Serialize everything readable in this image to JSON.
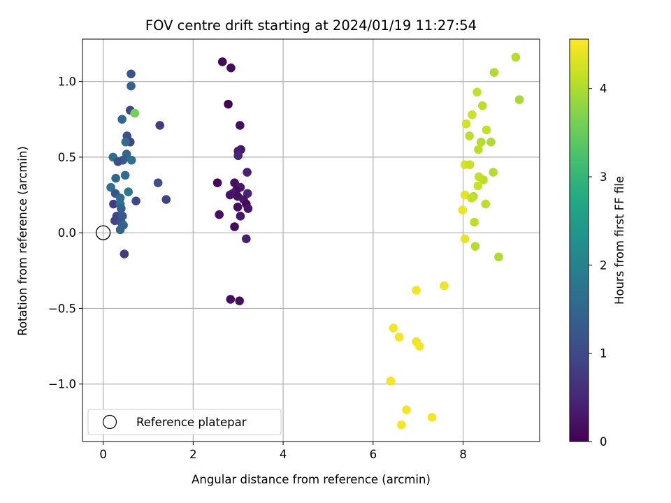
{
  "chart_data": {
    "type": "scatter",
    "title": "FOV centre drift starting at 2024/01/19 11:27:54",
    "xlabel": "Angular distance from reference (arcmin)",
    "ylabel": "Rotation from reference (arcmin)",
    "xlim": [
      -0.46,
      9.7
    ],
    "ylim": [
      -1.38,
      1.28
    ],
    "xticks": [
      0,
      2,
      4,
      6,
      8
    ],
    "xtick_labels": [
      "0",
      "2",
      "4",
      "6",
      "8"
    ],
    "yticks": [
      -1.0,
      -0.5,
      0.0,
      0.5,
      1.0
    ],
    "ytick_labels": [
      "−1.0",
      "−0.5",
      "0.0",
      "0.5",
      "1.0"
    ],
    "grid": true,
    "colorbar": {
      "label": "Hours from first FF file",
      "colormap": "viridis",
      "range": [
        0,
        4.56
      ],
      "ticks": [
        0,
        1,
        2,
        3,
        4
      ],
      "tick_labels": [
        "0",
        "1",
        "2",
        "3",
        "4"
      ]
    },
    "legend": {
      "location": "lower-left",
      "entries": [
        {
          "label": "Reference platepar",
          "marker": "open-circle"
        }
      ]
    },
    "reference_point": {
      "x": 0.0,
      "y": 0.0
    },
    "points": [
      {
        "x": 0.62,
        "y": 1.05,
        "h": 1.2
      },
      {
        "x": 0.62,
        "y": 0.97,
        "h": 1.4
      },
      {
        "x": 0.6,
        "y": 0.81,
        "h": 1.0
      },
      {
        "x": 0.42,
        "y": 0.75,
        "h": 1.5
      },
      {
        "x": 0.7,
        "y": 0.79,
        "h": 3.6
      },
      {
        "x": 1.26,
        "y": 0.71,
        "h": 0.8
      },
      {
        "x": 0.53,
        "y": 0.64,
        "h": 1.1
      },
      {
        "x": 0.6,
        "y": 0.6,
        "h": 0.9
      },
      {
        "x": 0.5,
        "y": 0.6,
        "h": 1.6
      },
      {
        "x": 0.52,
        "y": 0.52,
        "h": 1.5
      },
      {
        "x": 0.22,
        "y": 0.5,
        "h": 1.6
      },
      {
        "x": 0.63,
        "y": 0.48,
        "h": 1.7
      },
      {
        "x": 0.44,
        "y": 0.48,
        "h": 1.3
      },
      {
        "x": 0.33,
        "y": 0.47,
        "h": 1.1
      },
      {
        "x": 0.49,
        "y": 0.38,
        "h": 1.6
      },
      {
        "x": 0.28,
        "y": 0.36,
        "h": 1.5
      },
      {
        "x": 1.22,
        "y": 0.33,
        "h": 1.1
      },
      {
        "x": 0.17,
        "y": 0.3,
        "h": 1.7
      },
      {
        "x": 0.56,
        "y": 0.27,
        "h": 1.8
      },
      {
        "x": 0.27,
        "y": 0.26,
        "h": 1.2
      },
      {
        "x": 0.38,
        "y": 0.23,
        "h": 1.6
      },
      {
        "x": 1.4,
        "y": 0.22,
        "h": 0.9
      },
      {
        "x": 0.73,
        "y": 0.21,
        "h": 1.0
      },
      {
        "x": 0.23,
        "y": 0.19,
        "h": 0.8
      },
      {
        "x": 0.38,
        "y": 0.19,
        "h": 1.7
      },
      {
        "x": 0.4,
        "y": 0.16,
        "h": 1.4
      },
      {
        "x": 0.3,
        "y": 0.11,
        "h": 1.0
      },
      {
        "x": 0.43,
        "y": 0.11,
        "h": 1.3
      },
      {
        "x": 0.26,
        "y": 0.08,
        "h": 0.9
      },
      {
        "x": 0.4,
        "y": 0.07,
        "h": 1.2
      },
      {
        "x": 0.45,
        "y": 0.05,
        "h": 1.5
      },
      {
        "x": 0.38,
        "y": 0.02,
        "h": 1.4
      },
      {
        "x": 0.47,
        "y": -0.14,
        "h": 0.8
      },
      {
        "x": 2.65,
        "y": 1.13,
        "h": 0.1
      },
      {
        "x": 2.84,
        "y": 1.09,
        "h": 0.15
      },
      {
        "x": 2.78,
        "y": 0.85,
        "h": 0.05
      },
      {
        "x": 3.04,
        "y": 0.71,
        "h": 0.2
      },
      {
        "x": 3.06,
        "y": 0.55,
        "h": 0.3
      },
      {
        "x": 3.0,
        "y": 0.54,
        "h": 0.35
      },
      {
        "x": 3.0,
        "y": 0.51,
        "h": 0.5
      },
      {
        "x": 3.2,
        "y": 0.4,
        "h": 0.4
      },
      {
        "x": 2.54,
        "y": 0.33,
        "h": 0.1
      },
      {
        "x": 2.92,
        "y": 0.33,
        "h": 0.2
      },
      {
        "x": 3.05,
        "y": 0.3,
        "h": 0.3
      },
      {
        "x": 2.96,
        "y": 0.28,
        "h": 0.15
      },
      {
        "x": 3.21,
        "y": 0.26,
        "h": 0.45
      },
      {
        "x": 2.88,
        "y": 0.26,
        "h": 0.35
      },
      {
        "x": 2.82,
        "y": 0.25,
        "h": 0.25
      },
      {
        "x": 2.99,
        "y": 0.24,
        "h": 0.2
      },
      {
        "x": 3.12,
        "y": 0.22,
        "h": 0.3
      },
      {
        "x": 3.18,
        "y": 0.19,
        "h": 0.1
      },
      {
        "x": 2.99,
        "y": 0.17,
        "h": 0.15
      },
      {
        "x": 3.22,
        "y": 0.16,
        "h": 0.25
      },
      {
        "x": 2.58,
        "y": 0.12,
        "h": 0.2
      },
      {
        "x": 3.05,
        "y": 0.11,
        "h": 0.3
      },
      {
        "x": 2.92,
        "y": 0.04,
        "h": 0.1
      },
      {
        "x": 3.18,
        "y": -0.04,
        "h": 0.4
      },
      {
        "x": 2.83,
        "y": -0.44,
        "h": 0.15
      },
      {
        "x": 3.03,
        "y": -0.45,
        "h": 0.2
      },
      {
        "x": 9.17,
        "y": 1.16,
        "h": 4.05
      },
      {
        "x": 8.69,
        "y": 1.06,
        "h": 4.0
      },
      {
        "x": 8.31,
        "y": 0.93,
        "h": 4.15
      },
      {
        "x": 9.25,
        "y": 0.88,
        "h": 3.95
      },
      {
        "x": 8.43,
        "y": 0.84,
        "h": 4.1
      },
      {
        "x": 8.2,
        "y": 0.78,
        "h": 4.2
      },
      {
        "x": 8.07,
        "y": 0.72,
        "h": 4.25
      },
      {
        "x": 8.52,
        "y": 0.68,
        "h": 4.15
      },
      {
        "x": 8.14,
        "y": 0.64,
        "h": 4.1
      },
      {
        "x": 8.4,
        "y": 0.6,
        "h": 4.05
      },
      {
        "x": 8.62,
        "y": 0.6,
        "h": 4.0
      },
      {
        "x": 8.34,
        "y": 0.55,
        "h": 4.1
      },
      {
        "x": 8.04,
        "y": 0.45,
        "h": 4.3
      },
      {
        "x": 8.15,
        "y": 0.45,
        "h": 4.2
      },
      {
        "x": 8.67,
        "y": 0.4,
        "h": 4.05
      },
      {
        "x": 8.35,
        "y": 0.37,
        "h": 4.15
      },
      {
        "x": 8.45,
        "y": 0.35,
        "h": 4.1
      },
      {
        "x": 8.33,
        "y": 0.31,
        "h": 4.2
      },
      {
        "x": 8.04,
        "y": 0.25,
        "h": 4.4
      },
      {
        "x": 8.23,
        "y": 0.24,
        "h": 4.05
      },
      {
        "x": 8.19,
        "y": 0.23,
        "h": 4.15
      },
      {
        "x": 8.5,
        "y": 0.19,
        "h": 4.1
      },
      {
        "x": 7.99,
        "y": 0.15,
        "h": 4.45
      },
      {
        "x": 8.25,
        "y": 0.07,
        "h": 4.1
      },
      {
        "x": 8.04,
        "y": -0.04,
        "h": 4.4
      },
      {
        "x": 8.27,
        "y": -0.09,
        "h": 4.05
      },
      {
        "x": 8.79,
        "y": -0.16,
        "h": 4.0
      },
      {
        "x": 7.58,
        "y": -0.35,
        "h": 4.45
      },
      {
        "x": 6.96,
        "y": -0.38,
        "h": 4.5
      },
      {
        "x": 6.45,
        "y": -0.63,
        "h": 4.5
      },
      {
        "x": 6.58,
        "y": -0.69,
        "h": 4.5
      },
      {
        "x": 6.96,
        "y": -0.72,
        "h": 4.45
      },
      {
        "x": 7.03,
        "y": -0.75,
        "h": 4.5
      },
      {
        "x": 6.39,
        "y": -0.98,
        "h": 4.5
      },
      {
        "x": 6.74,
        "y": -1.17,
        "h": 4.5
      },
      {
        "x": 7.31,
        "y": -1.22,
        "h": 4.5
      },
      {
        "x": 6.63,
        "y": -1.27,
        "h": 4.5
      }
    ]
  }
}
